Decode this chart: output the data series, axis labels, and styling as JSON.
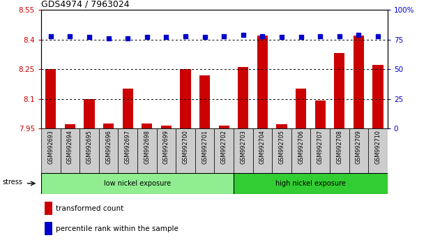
{
  "title": "GDS4974 / 7963024",
  "samples": [
    "GSM992693",
    "GSM992694",
    "GSM992695",
    "GSM992696",
    "GSM992697",
    "GSM992698",
    "GSM992699",
    "GSM992700",
    "GSM992701",
    "GSM992702",
    "GSM992703",
    "GSM992704",
    "GSM992705",
    "GSM992706",
    "GSM992707",
    "GSM992708",
    "GSM992709",
    "GSM992710"
  ],
  "bar_values": [
    8.25,
    7.97,
    8.1,
    7.975,
    8.15,
    7.975,
    7.965,
    8.25,
    8.22,
    7.965,
    8.26,
    8.42,
    7.97,
    8.15,
    8.09,
    8.33,
    8.42,
    8.27
  ],
  "dot_values": [
    78,
    78,
    77,
    76,
    76,
    77,
    77,
    78,
    77,
    78,
    79,
    78,
    77,
    77,
    78,
    78,
    79,
    78
  ],
  "ymin": 7.95,
  "ymax": 8.55,
  "y2min": 0,
  "y2max": 100,
  "yticks": [
    7.95,
    8.1,
    8.25,
    8.4,
    8.55
  ],
  "y2ticks": [
    0,
    25,
    50,
    75,
    100
  ],
  "ytick_labels": [
    "7.95",
    "8.1",
    "8.25",
    "8.4",
    "8.55"
  ],
  "y2tick_labels": [
    "0",
    "25",
    "50",
    "75",
    "100%"
  ],
  "grid_lines": [
    8.1,
    8.25,
    8.4
  ],
  "bar_color": "#cc0000",
  "dot_color": "#0000cc",
  "axis_color_left": "#cc0000",
  "axis_color_right": "#0000cc",
  "low_nickel_count": 10,
  "low_label": "low nickel exposure",
  "high_label": "high nickel exposure",
  "stress_label": "stress",
  "legend_bar": "transformed count",
  "legend_dot": "percentile rank within the sample",
  "low_exposure_color": "#90ee90",
  "high_exposure_color": "#32cd32",
  "sample_box_color": "#cccccc"
}
